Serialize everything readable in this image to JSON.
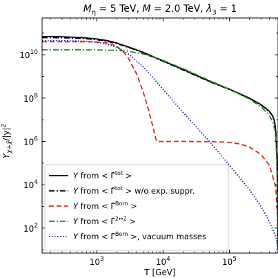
{
  "chart_data": {
    "type": "line",
    "title": "M_η = 5 TeV, M = 2.0 TeV, λ_3 = 1",
    "title_parts": {
      "m_eta_sym": "M",
      "m_eta_sub": "η",
      "m_eta_val": " = 5 TeV, ",
      "m_sym": "M",
      "m_val": " = 2.0 TeV, ",
      "lambda_sym": "λ",
      "lambda_sub": "3",
      "lambda_val": " = 1"
    },
    "xlabel": "T [GeV]",
    "ylabel": "Y_{χ+χ̄}/|y|^2",
    "ylabel_parts": {
      "y_sym": "Y",
      "y_sub": "χ+χ̄",
      "rest": "/|y|",
      "sup": "2"
    },
    "xscale": "log",
    "yscale": "log",
    "xlim": [
      150,
      540000
    ],
    "ylim": [
      7,
      500000000000.0
    ],
    "x_ticks": [
      {
        "value": 1000,
        "base": "10",
        "exp": "3"
      },
      {
        "value": 10000,
        "base": "10",
        "exp": "4"
      },
      {
        "value": 100000,
        "base": "10",
        "exp": "5"
      }
    ],
    "y_ticks": [
      {
        "value": 100,
        "base": "10",
        "exp": "2"
      },
      {
        "value": 10000,
        "base": "10",
        "exp": "4"
      },
      {
        "value": 1000000,
        "base": "10",
        "exp": "6"
      },
      {
        "value": 100000000,
        "base": "10",
        "exp": "8"
      },
      {
        "value": 10000000000,
        "base": "10",
        "exp": "10"
      }
    ],
    "grid": false,
    "legend_position": "lower-left",
    "series": [
      {
        "name": "Y from <Γ̂^tot>",
        "legend": {
          "pre": " from ",
          "hat_sym": "Γ̂",
          "sup": "tot",
          "post": ">"
        },
        "color": "#000000",
        "style": "solid",
        "x": [
          150,
          300,
          600,
          1000,
          1500,
          2000,
          3000,
          5000,
          10000,
          20000,
          50000,
          100000,
          200000,
          300000,
          400000,
          450000,
          480000,
          500000,
          520000,
          530000,
          540000
        ],
        "y": [
          70000000000.0,
          68000000000.0,
          62000000000.0,
          54000000000.0,
          44000000000.0,
          35000000000.0,
          23000000000.0,
          13000000000.0,
          5200000000.0,
          2100000000.0,
          600000000.0,
          260000000.0,
          100000000.0,
          50000000.0,
          25000000.0,
          15000000.0,
          8000000.0,
          3000000.0,
          200000.0,
          5000.0,
          10
        ]
      },
      {
        "name": "Y from <Γ̂^tot> w/o exp. suppr.",
        "legend": {
          "pre": " from ",
          "hat_sym": "Γ̂",
          "sup": "tot",
          "post": ">  w/o exp. suppr."
        },
        "color": "#000000",
        "style": "dashdot",
        "x": [
          150,
          300,
          600,
          1000,
          1500,
          2000,
          3000,
          5000,
          10000,
          20000,
          50000,
          100000,
          200000,
          300000,
          400000,
          450000,
          480000,
          500000,
          520000,
          530000,
          540000
        ],
        "y": [
          62000000000.0,
          61000000000.0,
          57000000000.0,
          50000000000.0,
          41000000000.0,
          33000000000.0,
          22000000000.0,
          12500000000.0,
          5000000000.0,
          2000000000.0,
          580000000.0,
          250000000.0,
          97000000.0,
          48000000.0,
          24000000.0,
          14500000.0,
          7700000.0,
          2900000.0,
          190000.0,
          5000.0,
          10
        ]
      },
      {
        "name": "Y from <Γ̂^Born>",
        "legend": {
          "pre": " from ",
          "hat_sym": "Γ̂",
          "sup": "Born",
          "post": ">"
        },
        "color": "#e8201e",
        "style": "dashed",
        "x": [
          150,
          500,
          1000,
          1500,
          2000,
          2500,
          3000,
          4000,
          5000,
          6000,
          7000,
          7500,
          8000,
          10000,
          20000,
          50000,
          80000,
          100000,
          150000,
          200000,
          300000,
          400000,
          500000,
          540000
        ],
        "y": [
          40000000000.0,
          40000000000.0,
          39000000000.0,
          35000000000.0,
          25000000000.0,
          14000000000.0,
          7000000000.0,
          1300000000.0,
          200000000.0,
          30000000.0,
          5000000.0,
          2000000.0,
          1000000.0,
          1000000.0,
          1000000.0,
          980000.0,
          940000.0,
          900000.0,
          750000.0,
          550000.0,
          250000.0,
          80000.0,
          8000.0,
          100
        ]
      },
      {
        "name": "Y from <Γ̂^{2↔2}>",
        "legend": {
          "pre": " from ",
          "hat_sym": "Γ̂",
          "sup": "2↔2",
          "post": ">"
        },
        "color": "#1a8a1a",
        "style": "dashdot",
        "x": [
          150,
          500,
          1000,
          2000,
          3000,
          5000,
          10000,
          20000,
          50000,
          100000,
          200000,
          300000,
          400000,
          450000,
          480000,
          500000,
          520000,
          530000,
          540000
        ],
        "y": [
          17000000000.0,
          17000000000.0,
          16800000000.0,
          16000000000.0,
          14500000000.0,
          11000000000.0,
          5500000000.0,
          2300000000.0,
          650000000.0,
          260000000.0,
          90000000.0,
          40000000.0,
          16000000.0,
          8000000.0,
          4000000.0,
          1500000.0,
          100000.0,
          1000.0,
          10
        ]
      },
      {
        "name": "Y from <Γ̂^Born>, vacuum masses",
        "legend": {
          "pre": " from ",
          "hat_sym": "Γ̂",
          "sup": "Born",
          "post": ">, vacuum masses"
        },
        "color": "#1f1fd0",
        "style": "dotted",
        "x": [
          150,
          300,
          600,
          1000,
          1500,
          2000,
          3000,
          5000,
          7000,
          10000,
          20000,
          50000,
          100000,
          200000,
          300000,
          400000,
          500000,
          530000,
          540000
        ],
        "y": [
          45000000000.0,
          45000000000.0,
          43000000000.0,
          38000000000.0,
          30000000000.0,
          22000000000.0,
          11000000000.0,
          2800000000.0,
          900000000.0,
          250000000.0,
          22000000.0,
          1000000.0,
          80000.0,
          6000.0,
          1000.0,
          200.0,
          40,
          15,
          10
        ]
      }
    ]
  }
}
